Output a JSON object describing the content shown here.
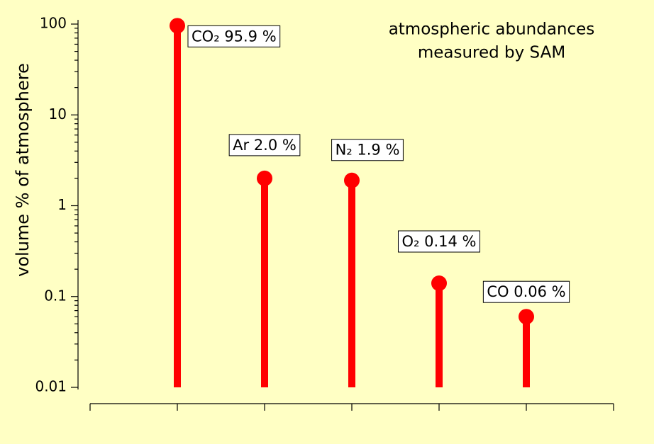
{
  "chart_data": {
    "type": "stem",
    "title": [
      "atmospheric abundances",
      "measured by SAM"
    ],
    "ylabel": "volume % of atmosphere",
    "x": [
      1,
      2,
      3,
      4,
      5
    ],
    "values": [
      95.9,
      2.0,
      1.9,
      0.14,
      0.06
    ],
    "value_labels": [
      "CO₂ 95.9 %",
      "Ar 2.0 %",
      "N₂ 1.9 %",
      "O₂ 0.14 %",
      "CO 0.06 %"
    ],
    "color": "#ff0000",
    "xlim": [
      0,
      6
    ],
    "xticks": [
      0,
      1,
      2,
      3,
      4,
      5,
      6
    ],
    "ylim": [
      0.01,
      100
    ],
    "yticks": [
      0.01,
      0.1,
      1,
      10,
      100
    ],
    "ylog": true
  }
}
